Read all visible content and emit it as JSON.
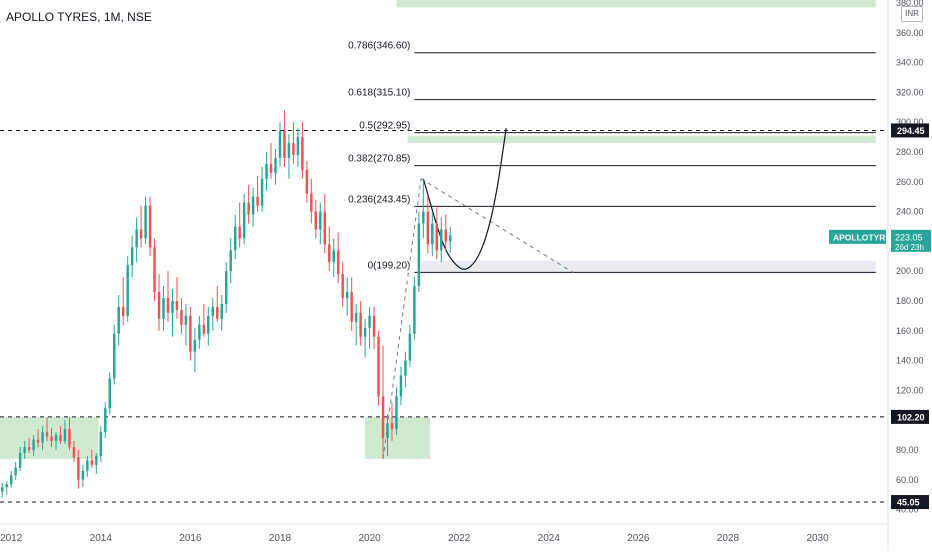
{
  "header": {
    "title": "APOLLO TYRES, 1M, NSE",
    "currency": "INR"
  },
  "colors": {
    "up": "#26a69a",
    "down": "#ef5350",
    "zone": "#c8e6c9",
    "grey_zone": "#e0e3eb",
    "ticker_badge": "#26a69a"
  },
  "chart_data": {
    "type": "candlestick",
    "symbol": "APOLLOTYRE",
    "interval": "1M",
    "exchange": "NSE",
    "x_axis": {
      "ticks": [
        "2012",
        "2014",
        "2016",
        "2018",
        "2020",
        "2022",
        "2024",
        "2026",
        "2028",
        "2030"
      ],
      "range": [
        2011.75,
        2031.55
      ]
    },
    "y_axis": {
      "ticks": [
        40,
        60,
        80,
        100,
        120,
        140,
        160,
        180,
        200,
        220,
        240,
        260,
        280,
        300,
        320,
        340,
        360,
        380
      ],
      "range": [
        33,
        382
      ]
    },
    "series": [
      {
        "t": 2011.8,
        "o": 52,
        "h": 58,
        "l": 48,
        "c": 55
      },
      {
        "t": 2011.9,
        "o": 55,
        "h": 59,
        "l": 50,
        "c": 57
      },
      {
        "t": 2012.0,
        "o": 57,
        "h": 66,
        "l": 55,
        "c": 63
      },
      {
        "t": 2012.1,
        "o": 63,
        "h": 72,
        "l": 60,
        "c": 68
      },
      {
        "t": 2012.2,
        "o": 68,
        "h": 82,
        "l": 66,
        "c": 78
      },
      {
        "t": 2012.3,
        "o": 78,
        "h": 86,
        "l": 74,
        "c": 82
      },
      {
        "t": 2012.4,
        "o": 82,
        "h": 88,
        "l": 78,
        "c": 80
      },
      {
        "t": 2012.5,
        "o": 80,
        "h": 90,
        "l": 76,
        "c": 87
      },
      {
        "t": 2012.6,
        "o": 87,
        "h": 94,
        "l": 82,
        "c": 85
      },
      {
        "t": 2012.7,
        "o": 85,
        "h": 96,
        "l": 80,
        "c": 92
      },
      {
        "t": 2012.8,
        "o": 92,
        "h": 102,
        "l": 86,
        "c": 89
      },
      {
        "t": 2012.9,
        "o": 89,
        "h": 95,
        "l": 82,
        "c": 86
      },
      {
        "t": 2013.0,
        "o": 86,
        "h": 92,
        "l": 80,
        "c": 90
      },
      {
        "t": 2013.1,
        "o": 90,
        "h": 96,
        "l": 84,
        "c": 86
      },
      {
        "t": 2013.2,
        "o": 86,
        "h": 100,
        "l": 84,
        "c": 94
      },
      {
        "t": 2013.3,
        "o": 94,
        "h": 102,
        "l": 80,
        "c": 82
      },
      {
        "t": 2013.4,
        "o": 82,
        "h": 86,
        "l": 72,
        "c": 75
      },
      {
        "t": 2013.5,
        "o": 75,
        "h": 80,
        "l": 54,
        "c": 60
      },
      {
        "t": 2013.6,
        "o": 60,
        "h": 70,
        "l": 55,
        "c": 66
      },
      {
        "t": 2013.7,
        "o": 66,
        "h": 76,
        "l": 62,
        "c": 73
      },
      {
        "t": 2013.8,
        "o": 73,
        "h": 80,
        "l": 68,
        "c": 70
      },
      {
        "t": 2013.9,
        "o": 70,
        "h": 78,
        "l": 64,
        "c": 76
      },
      {
        "t": 2014.0,
        "o": 76,
        "h": 96,
        "l": 72,
        "c": 92
      },
      {
        "t": 2014.1,
        "o": 92,
        "h": 112,
        "l": 88,
        "c": 108
      },
      {
        "t": 2014.2,
        "o": 108,
        "h": 132,
        "l": 104,
        "c": 128
      },
      {
        "t": 2014.3,
        "o": 128,
        "h": 164,
        "l": 124,
        "c": 158
      },
      {
        "t": 2014.4,
        "o": 158,
        "h": 184,
        "l": 150,
        "c": 176
      },
      {
        "t": 2014.5,
        "o": 176,
        "h": 196,
        "l": 164,
        "c": 170
      },
      {
        "t": 2014.6,
        "o": 170,
        "h": 210,
        "l": 166,
        "c": 204
      },
      {
        "t": 2014.7,
        "o": 204,
        "h": 224,
        "l": 196,
        "c": 216
      },
      {
        "t": 2014.8,
        "o": 216,
        "h": 236,
        "l": 206,
        "c": 228
      },
      {
        "t": 2014.9,
        "o": 228,
        "h": 244,
        "l": 216,
        "c": 222
      },
      {
        "t": 2015.0,
        "o": 222,
        "h": 250,
        "l": 218,
        "c": 244
      },
      {
        "t": 2015.1,
        "o": 244,
        "h": 250,
        "l": 210,
        "c": 216
      },
      {
        "t": 2015.2,
        "o": 216,
        "h": 222,
        "l": 180,
        "c": 186
      },
      {
        "t": 2015.3,
        "o": 186,
        "h": 198,
        "l": 160,
        "c": 168
      },
      {
        "t": 2015.4,
        "o": 168,
        "h": 190,
        "l": 160,
        "c": 182
      },
      {
        "t": 2015.5,
        "o": 182,
        "h": 200,
        "l": 166,
        "c": 172
      },
      {
        "t": 2015.6,
        "o": 172,
        "h": 188,
        "l": 156,
        "c": 180
      },
      {
        "t": 2015.7,
        "o": 180,
        "h": 196,
        "l": 168,
        "c": 174
      },
      {
        "t": 2015.8,
        "o": 174,
        "h": 182,
        "l": 158,
        "c": 164
      },
      {
        "t": 2015.9,
        "o": 164,
        "h": 178,
        "l": 150,
        "c": 170
      },
      {
        "t": 2016.0,
        "o": 170,
        "h": 176,
        "l": 140,
        "c": 146
      },
      {
        "t": 2016.1,
        "o": 146,
        "h": 162,
        "l": 132,
        "c": 154
      },
      {
        "t": 2016.2,
        "o": 154,
        "h": 170,
        "l": 148,
        "c": 164
      },
      {
        "t": 2016.3,
        "o": 164,
        "h": 178,
        "l": 156,
        "c": 158
      },
      {
        "t": 2016.4,
        "o": 158,
        "h": 176,
        "l": 150,
        "c": 170
      },
      {
        "t": 2016.5,
        "o": 170,
        "h": 182,
        "l": 160,
        "c": 176
      },
      {
        "t": 2016.6,
        "o": 176,
        "h": 190,
        "l": 166,
        "c": 168
      },
      {
        "t": 2016.7,
        "o": 168,
        "h": 184,
        "l": 160,
        "c": 178
      },
      {
        "t": 2016.8,
        "o": 178,
        "h": 206,
        "l": 172,
        "c": 200
      },
      {
        "t": 2016.9,
        "o": 200,
        "h": 222,
        "l": 192,
        "c": 214
      },
      {
        "t": 2017.0,
        "o": 214,
        "h": 238,
        "l": 208,
        "c": 230
      },
      {
        "t": 2017.1,
        "o": 230,
        "h": 246,
        "l": 216,
        "c": 222
      },
      {
        "t": 2017.2,
        "o": 222,
        "h": 252,
        "l": 218,
        "c": 246
      },
      {
        "t": 2017.3,
        "o": 246,
        "h": 258,
        "l": 232,
        "c": 238
      },
      {
        "t": 2017.4,
        "o": 238,
        "h": 256,
        "l": 230,
        "c": 250
      },
      {
        "t": 2017.5,
        "o": 250,
        "h": 264,
        "l": 240,
        "c": 244
      },
      {
        "t": 2017.6,
        "o": 244,
        "h": 270,
        "l": 240,
        "c": 262
      },
      {
        "t": 2017.7,
        "o": 262,
        "h": 280,
        "l": 254,
        "c": 272
      },
      {
        "t": 2017.8,
        "o": 272,
        "h": 286,
        "l": 262,
        "c": 266
      },
      {
        "t": 2017.9,
        "o": 266,
        "h": 282,
        "l": 258,
        "c": 276
      },
      {
        "t": 2018.0,
        "o": 276,
        "h": 300,
        "l": 270,
        "c": 294
      },
      {
        "t": 2018.1,
        "o": 294,
        "h": 308,
        "l": 270,
        "c": 276
      },
      {
        "t": 2018.2,
        "o": 276,
        "h": 292,
        "l": 262,
        "c": 286
      },
      {
        "t": 2018.3,
        "o": 286,
        "h": 300,
        "l": 272,
        "c": 278
      },
      {
        "t": 2018.4,
        "o": 278,
        "h": 296,
        "l": 270,
        "c": 290
      },
      {
        "t": 2018.5,
        "o": 290,
        "h": 300,
        "l": 262,
        "c": 268
      },
      {
        "t": 2018.6,
        "o": 268,
        "h": 274,
        "l": 246,
        "c": 252
      },
      {
        "t": 2018.7,
        "o": 252,
        "h": 262,
        "l": 232,
        "c": 240
      },
      {
        "t": 2018.8,
        "o": 240,
        "h": 248,
        "l": 222,
        "c": 228
      },
      {
        "t": 2018.9,
        "o": 228,
        "h": 246,
        "l": 218,
        "c": 240
      },
      {
        "t": 2019.0,
        "o": 240,
        "h": 252,
        "l": 212,
        "c": 218
      },
      {
        "t": 2019.1,
        "o": 218,
        "h": 230,
        "l": 200,
        "c": 206
      },
      {
        "t": 2019.2,
        "o": 206,
        "h": 222,
        "l": 196,
        "c": 214
      },
      {
        "t": 2019.3,
        "o": 214,
        "h": 226,
        "l": 192,
        "c": 198
      },
      {
        "t": 2019.4,
        "o": 198,
        "h": 206,
        "l": 176,
        "c": 182
      },
      {
        "t": 2019.5,
        "o": 182,
        "h": 196,
        "l": 170,
        "c": 186
      },
      {
        "t": 2019.6,
        "o": 186,
        "h": 196,
        "l": 160,
        "c": 166
      },
      {
        "t": 2019.7,
        "o": 166,
        "h": 178,
        "l": 150,
        "c": 172
      },
      {
        "t": 2019.8,
        "o": 172,
        "h": 180,
        "l": 150,
        "c": 156
      },
      {
        "t": 2019.9,
        "o": 156,
        "h": 168,
        "l": 142,
        "c": 162
      },
      {
        "t": 2020.0,
        "o": 162,
        "h": 176,
        "l": 148,
        "c": 170
      },
      {
        "t": 2020.1,
        "o": 170,
        "h": 176,
        "l": 148,
        "c": 156
      },
      {
        "t": 2020.2,
        "o": 156,
        "h": 160,
        "l": 110,
        "c": 116
      },
      {
        "t": 2020.3,
        "o": 116,
        "h": 150,
        "l": 74,
        "c": 88
      },
      {
        "t": 2020.4,
        "o": 88,
        "h": 104,
        "l": 76,
        "c": 98
      },
      {
        "t": 2020.5,
        "o": 98,
        "h": 112,
        "l": 86,
        "c": 94
      },
      {
        "t": 2020.6,
        "o": 94,
        "h": 122,
        "l": 90,
        "c": 116
      },
      {
        "t": 2020.7,
        "o": 116,
        "h": 136,
        "l": 110,
        "c": 130
      },
      {
        "t": 2020.8,
        "o": 130,
        "h": 146,
        "l": 122,
        "c": 140
      },
      {
        "t": 2020.9,
        "o": 140,
        "h": 164,
        "l": 136,
        "c": 158
      },
      {
        "t": 2021.0,
        "o": 158,
        "h": 196,
        "l": 154,
        "c": 190
      },
      {
        "t": 2021.1,
        "o": 190,
        "h": 240,
        "l": 186,
        "c": 232
      },
      {
        "t": 2021.2,
        "o": 232,
        "h": 262,
        "l": 222,
        "c": 240
      },
      {
        "t": 2021.3,
        "o": 240,
        "h": 250,
        "l": 212,
        "c": 218
      },
      {
        "t": 2021.4,
        "o": 218,
        "h": 240,
        "l": 210,
        "c": 232
      },
      {
        "t": 2021.5,
        "o": 232,
        "h": 244,
        "l": 208,
        "c": 214
      },
      {
        "t": 2021.6,
        "o": 214,
        "h": 236,
        "l": 206,
        "c": 228
      },
      {
        "t": 2021.7,
        "o": 228,
        "h": 238,
        "l": 214,
        "c": 220
      },
      {
        "t": 2021.8,
        "o": 220,
        "h": 230,
        "l": 212,
        "c": 224
      }
    ],
    "fibonacci": [
      {
        "label": "0.786(346.60)",
        "price": 346.6,
        "t_start": 2020.0,
        "t_end": 2031.3
      },
      {
        "label": "0.618(315.10)",
        "price": 315.1,
        "t_start": 2020.0,
        "t_end": 2031.3
      },
      {
        "label": "0.5(292.95)",
        "price": 292.95,
        "t_start": 2020.0,
        "t_end": 2031.3
      },
      {
        "label": "0.382(270.85)",
        "price": 270.85,
        "t_start": 2020.0,
        "t_end": 2031.3
      },
      {
        "label": "0.236(243.45)",
        "price": 243.45,
        "t_start": 2020.0,
        "t_end": 2031.3
      },
      {
        "label": "0(199.20)",
        "price": 199.2,
        "t_start": 2020.0,
        "t_end": 2031.3
      }
    ],
    "horizontal_levels": [
      {
        "price": 294.45,
        "label": "294.45"
      },
      {
        "price": 102.2,
        "label": "102.20"
      },
      {
        "price": 45.05,
        "label": "45.05"
      }
    ],
    "zones": [
      {
        "name": "top-zone",
        "t_start": 2020.85,
        "t_end": 2031.3,
        "p_low": 286.0,
        "p_high": 291.0,
        "color": "zone"
      },
      {
        "name": "upper-right-zone",
        "t_start": 2020.6,
        "t_end": 2031.3,
        "p_low": 377.0,
        "p_high": 385.0,
        "color": "zone"
      },
      {
        "name": "support-zone",
        "t_start": 2021.15,
        "t_end": 2031.3,
        "p_low": 198.5,
        "p_high": 207.0,
        "color": "grey_zone"
      },
      {
        "name": "base-zone-left",
        "t_start": 2011.75,
        "t_end": 2013.95,
        "p_low": 74.0,
        "p_high": 102.0,
        "color": "zone"
      },
      {
        "name": "covid-zone",
        "t_start": 2019.9,
        "t_end": 2021.35,
        "p_low": 74.0,
        "p_high": 102.0,
        "color": "zone"
      }
    ],
    "trend_lines": [
      {
        "name": "rise-dashed",
        "points": [
          [
            2020.3,
            74
          ],
          [
            2021.15,
            262
          ]
        ],
        "dashed": true
      },
      {
        "name": "fall-dashed",
        "points": [
          [
            2021.15,
            262
          ],
          [
            2024.55,
            199
          ]
        ],
        "dashed": true
      }
    ],
    "projection_curve": {
      "points": [
        [
          2021.2,
          262
        ],
        [
          2021.6,
          220
        ],
        [
          2021.85,
          206
        ],
        [
          2022.15,
          199
        ],
        [
          2022.5,
          212
        ],
        [
          2022.8,
          245
        ],
        [
          2023.05,
          296
        ]
      ]
    },
    "last_price": {
      "symbol": "APOLLOTYRE",
      "value": "223.05",
      "countdown": "26d 23h",
      "price": 223.05
    }
  }
}
